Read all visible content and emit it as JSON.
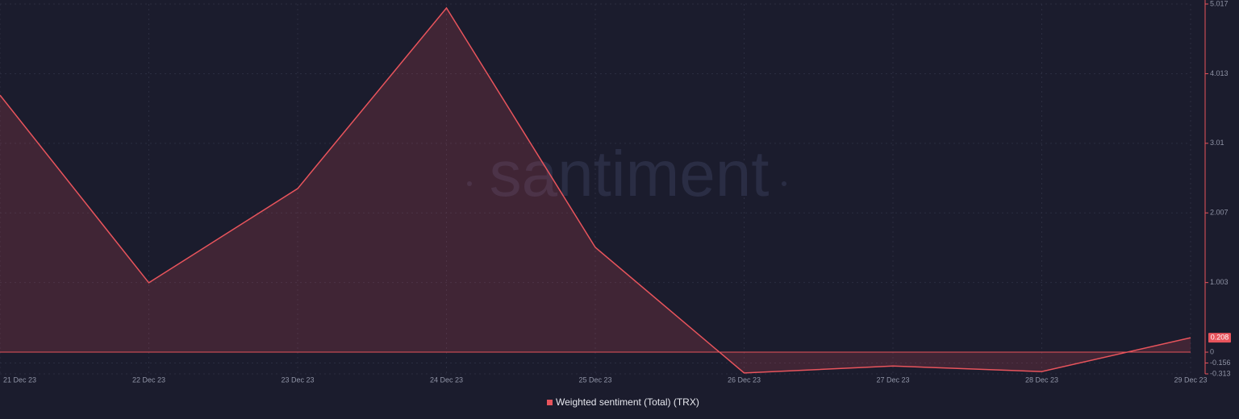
{
  "chart_data": {
    "type": "area",
    "watermark": "santiment",
    "categories": [
      "21 Dec 23",
      "22 Dec 23",
      "23 Dec 23",
      "24 Dec 23",
      "25 Dec 23",
      "26 Dec 23",
      "27 Dec 23",
      "28 Dec 23",
      "29 Dec 23"
    ],
    "series": [
      {
        "name": "Weighted sentiment (Total) (TRX)",
        "color": "#e8545c",
        "values": [
          3.704,
          1.0,
          2.357,
          4.96,
          1.51,
          -0.3,
          -0.2,
          -0.28,
          0.208
        ]
      }
    ],
    "ylim": [
      -0.313,
      5.017
    ],
    "yticks": [
      -0.313,
      -0.156,
      0,
      1.003,
      2.007,
      3.01,
      4.013,
      5.017
    ],
    "grid": true
  }
}
